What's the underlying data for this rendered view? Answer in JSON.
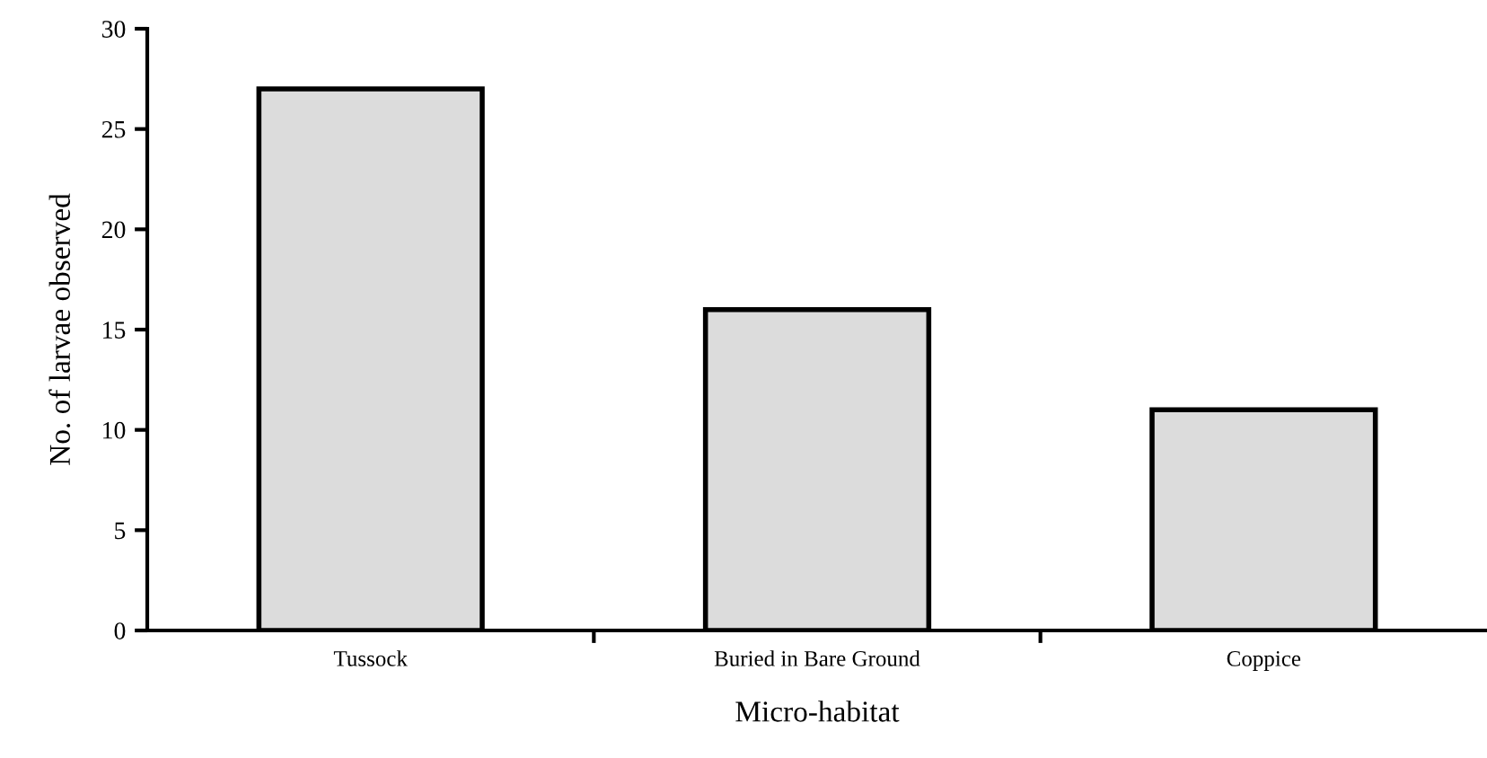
{
  "chart_data": {
    "type": "bar",
    "xlabel": "Micro-habitat",
    "ylabel": "No. of larvae observed",
    "categories": [
      "Tussock",
      "Buried in Bare Ground",
      "Coppice"
    ],
    "values": [
      27,
      16,
      11
    ],
    "color": "#dcdcdc",
    "ylim": [
      0,
      30
    ],
    "yticks": [
      0,
      5,
      10,
      15,
      20,
      25,
      30
    ],
    "grid": false,
    "legend": false
  }
}
